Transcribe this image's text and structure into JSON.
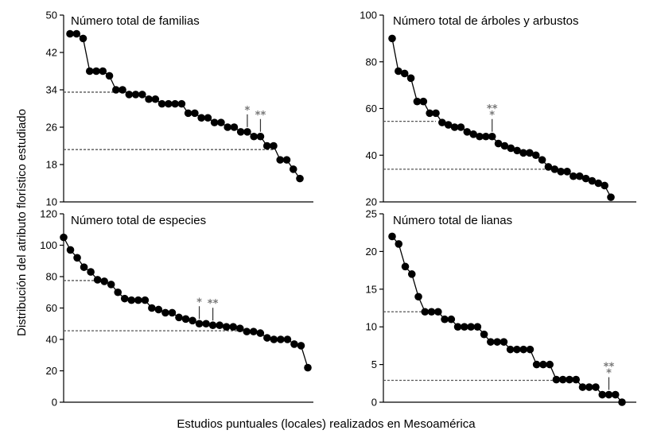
{
  "figure": {
    "ylabel": "Distribución del atributo florístico estudiado",
    "xlabel": "Estudios puntuales (locales) realizados en Mesoamérica"
  },
  "chart_data": [
    {
      "type": "scatter",
      "title": "Número total de familias",
      "ylim": [
        10,
        50
      ],
      "yticks": [
        10,
        18,
        26,
        34,
        42,
        50
      ],
      "values": [
        46,
        46,
        45,
        38,
        38,
        38,
        37,
        34,
        34,
        33,
        33,
        33,
        32,
        32,
        31,
        31,
        31,
        31,
        29,
        29,
        28,
        28,
        27,
        27,
        26,
        26,
        25,
        25,
        24,
        24,
        22,
        22,
        19,
        19,
        17,
        15
      ],
      "reference_lines": [
        33.5,
        21.2
      ],
      "annotations": [
        {
          "label": "*",
          "index": 27
        },
        {
          "label": "**",
          "index": 29
        }
      ]
    },
    {
      "type": "scatter",
      "title": "Número total de árboles y arbustos",
      "ylim": [
        20,
        100
      ],
      "yticks": [
        20,
        40,
        60,
        80,
        100
      ],
      "values": [
        90,
        76,
        75,
        73,
        63,
        63,
        58,
        58,
        54,
        53,
        52,
        52,
        50,
        49,
        48,
        48,
        48,
        45,
        44,
        43,
        42,
        41,
        41,
        40,
        38,
        35,
        34,
        33,
        33,
        31,
        31,
        30,
        29,
        28,
        27,
        22
      ],
      "reference_lines": [
        54.5,
        34
      ],
      "annotations": [
        {
          "label": "**\n*",
          "index": 16
        }
      ]
    },
    {
      "type": "scatter",
      "title": "Número total de especies",
      "ylim": [
        0,
        120
      ],
      "yticks": [
        0,
        20,
        40,
        60,
        80,
        100,
        120
      ],
      "values": [
        105,
        97,
        92,
        86,
        83,
        78,
        77,
        75,
        70,
        66,
        65,
        65,
        65,
        60,
        59,
        57,
        57,
        54,
        53,
        52,
        50,
        50,
        49,
        49,
        48,
        48,
        47,
        45,
        45,
        44,
        41,
        40,
        40,
        40,
        37,
        36,
        22
      ],
      "reference_lines": [
        77.5,
        45.5
      ],
      "annotations": [
        {
          "label": "*",
          "index": 20
        },
        {
          "label": "**",
          "index": 22
        }
      ]
    },
    {
      "type": "scatter",
      "title": "Número total de lianas",
      "ylim": [
        0,
        25
      ],
      "yticks": [
        0,
        5,
        10,
        15,
        20,
        25
      ],
      "values": [
        22,
        21,
        18,
        17,
        14,
        12,
        12,
        12,
        11,
        11,
        10,
        10,
        10,
        10,
        9,
        8,
        8,
        8,
        7,
        7,
        7,
        7,
        5,
        5,
        5,
        3,
        3,
        3,
        3,
        2,
        2,
        2,
        1,
        1,
        1,
        0
      ],
      "reference_lines": [
        12,
        2.9
      ],
      "annotations": [
        {
          "label": "**\n*",
          "index": 33
        }
      ]
    }
  ]
}
